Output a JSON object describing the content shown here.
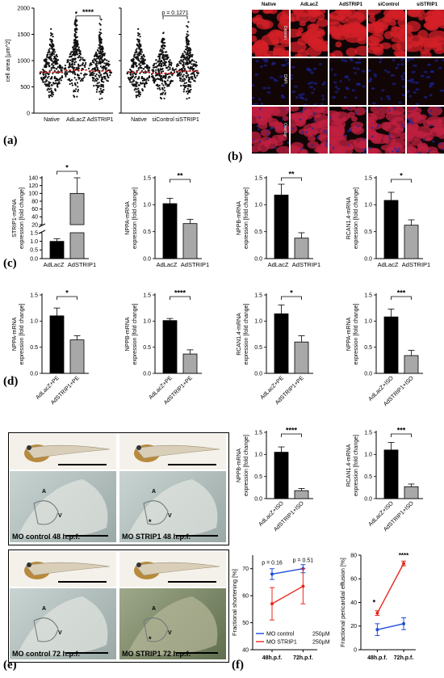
{
  "panel_labels": {
    "a": "(a)",
    "b": "(b)",
    "c": "(c)",
    "d": "(d)",
    "e": "(e)",
    "f": "(f)"
  },
  "microscopy": {
    "columns": [
      "Native",
      "AdLacZ",
      "AdSTRIP1",
      "siControl",
      "siSTRIP1"
    ],
    "rows": [
      "Desmin",
      "DAPI",
      "Overlay"
    ],
    "colors": {
      "desmin": "#d42028",
      "dapi": "#1a2ab0",
      "overlay": "#c02040",
      "background": "#120506"
    }
  },
  "zebrafish": {
    "captions": [
      "MO control   48 h.p.f.",
      "MO STRIP1   48 h.p.f.",
      "MO control   72 h.p.f.",
      "MO STRIP1   72 h.p.f."
    ],
    "markers": {
      "atrium": "A",
      "ventricle": "V",
      "effusion": "*"
    }
  },
  "chart_data": [
    {
      "id": "a1",
      "type": "scatter",
      "ylabel": "cell area [µm^2]",
      "ylim": [
        0,
        2000
      ],
      "yticks": [
        0,
        500,
        1000,
        1500,
        2000
      ],
      "categories": [
        "Native",
        "AdLacZ",
        "AdSTRIP1"
      ],
      "centers": [
        780,
        820,
        800
      ],
      "spreads": [
        [
          220,
          1800
        ],
        [
          250,
          2200
        ],
        [
          230,
          1900
        ]
      ],
      "significance": [
        {
          "from": 1,
          "to": 2,
          "label": "****"
        }
      ]
    },
    {
      "id": "a2",
      "type": "scatter",
      "ylabel": "",
      "ylim": [
        0,
        2000
      ],
      "categories": [
        "Native",
        "siControl",
        "siSTRIP1"
      ],
      "centers": [
        780,
        760,
        800
      ],
      "spreads": [
        [
          220,
          1800
        ],
        [
          230,
          1750
        ],
        [
          240,
          1850
        ]
      ],
      "significance": [
        {
          "from": 1,
          "to": 2,
          "label": "p = 0.1271"
        }
      ]
    },
    {
      "id": "c1",
      "type": "bar",
      "ylabel": "STRIP1-mRNA expression [fold change]",
      "categories": [
        "AdLacZ",
        "AdSTRIP1"
      ],
      "values": [
        1.0,
        100
      ],
      "errors": [
        0.15,
        40
      ],
      "broken_axis": {
        "lower": [
          0,
          1.5
        ],
        "upper": [
          20,
          140
        ]
      },
      "yticks_lower": [
        0.0,
        0.5,
        1.0,
        1.5
      ],
      "yticks_upper": [
        20,
        40,
        60,
        80,
        100,
        120,
        140
      ],
      "significance": [
        {
          "from": 0,
          "to": 1,
          "label": "*"
        }
      ]
    },
    {
      "id": "c2",
      "type": "bar",
      "ylabel": "NPPA-mRNA expression [fold change]",
      "categories": [
        "AdLacZ",
        "AdSTRIP1"
      ],
      "values": [
        1.02,
        0.65
      ],
      "errors": [
        0.1,
        0.08
      ],
      "ylim": [
        0,
        1.5
      ],
      "yticks": [
        0.0,
        0.5,
        1.0,
        1.5
      ],
      "significance": [
        {
          "from": 0,
          "to": 1,
          "label": "**"
        }
      ]
    },
    {
      "id": "c3",
      "type": "bar",
      "ylabel": "NPPB-mRNA expression [fold change]",
      "categories": [
        "AdLacZ",
        "AdSTRIP1"
      ],
      "values": [
        1.18,
        0.38
      ],
      "errors": [
        0.2,
        0.1
      ],
      "ylim": [
        0,
        1.5
      ],
      "yticks": [
        0.0,
        0.5,
        1.0,
        1.5
      ],
      "significance": [
        {
          "from": 0,
          "to": 1,
          "label": "**"
        }
      ]
    },
    {
      "id": "c4",
      "type": "bar",
      "ylabel": "RCAN1.4-mRNA expression [fold change]",
      "categories": [
        "AdLacZ",
        "AdSTRIP1"
      ],
      "values": [
        1.08,
        0.62
      ],
      "errors": [
        0.15,
        0.1
      ],
      "ylim": [
        0,
        1.5
      ],
      "yticks": [
        0.0,
        0.5,
        1.0,
        1.5
      ],
      "significance": [
        {
          "from": 0,
          "to": 1,
          "label": "*"
        }
      ]
    },
    {
      "id": "d1",
      "type": "bar",
      "ylabel": "NPPA-mRNA expression [fold change]",
      "categories": [
        "AdLacZ+PE",
        "AdSTRIP1+PE"
      ],
      "values": [
        1.1,
        0.64
      ],
      "errors": [
        0.15,
        0.08
      ],
      "ylim": [
        0,
        1.5
      ],
      "yticks": [
        0.0,
        0.5,
        1.0,
        1.5
      ],
      "significance": [
        {
          "from": 0,
          "to": 1,
          "label": "*"
        }
      ]
    },
    {
      "id": "d2",
      "type": "bar",
      "ylabel": "NPPB-mRNA expression [fold change]",
      "categories": [
        "AdLacZ+PE",
        "AdSTRIP1+PE"
      ],
      "values": [
        1.01,
        0.37
      ],
      "errors": [
        0.04,
        0.08
      ],
      "ylim": [
        0,
        1.5
      ],
      "yticks": [
        0.0,
        0.5,
        1.0,
        1.5
      ],
      "significance": [
        {
          "from": 0,
          "to": 1,
          "label": "****"
        }
      ]
    },
    {
      "id": "d3",
      "type": "bar",
      "ylabel": "RCAN1.4-mRNA expression [fold change]",
      "categories": [
        "AdLacZ+PE",
        "AdSTRIP1+PE"
      ],
      "values": [
        1.14,
        0.6
      ],
      "errors": [
        0.17,
        0.12
      ],
      "ylim": [
        0,
        1.5
      ],
      "yticks": [
        0.0,
        0.5,
        1.0,
        1.5
      ],
      "significance": [
        {
          "from": 0,
          "to": 1,
          "label": "*"
        }
      ]
    },
    {
      "id": "d4",
      "type": "bar",
      "ylabel": "NPPA-mRNA expression [fold change]",
      "categories": [
        "AdLacZ+ISO",
        "AdSTRIP1+ISO"
      ],
      "values": [
        1.08,
        0.34
      ],
      "errors": [
        0.15,
        0.1
      ],
      "ylim": [
        0,
        1.5
      ],
      "yticks": [
        0.0,
        0.5,
        1.0,
        1.5
      ],
      "significance": [
        {
          "from": 0,
          "to": 1,
          "label": "***"
        }
      ]
    },
    {
      "id": "d5",
      "type": "bar",
      "ylabel": "NPPB-mRNA expression [fold change]",
      "categories": [
        "AdLacZ+ISO",
        "AdSTRIP1+ISO"
      ],
      "values": [
        1.05,
        0.18
      ],
      "errors": [
        0.12,
        0.05
      ],
      "ylim": [
        0,
        1.5
      ],
      "yticks": [
        0.0,
        0.5,
        1.0,
        1.5
      ],
      "significance": [
        {
          "from": 0,
          "to": 1,
          "label": "****"
        }
      ]
    },
    {
      "id": "d6",
      "type": "bar",
      "ylabel": "RCAN1.4-mRNA expression [fold change]",
      "categories": [
        "AdLacZ+ISO",
        "AdSTRIP1+ISO"
      ],
      "values": [
        1.1,
        0.27
      ],
      "errors": [
        0.17,
        0.06
      ],
      "ylim": [
        0,
        1.5
      ],
      "yticks": [
        0.0,
        0.5,
        1.0,
        1.5
      ],
      "significance": [
        {
          "from": 0,
          "to": 1,
          "label": "***"
        }
      ]
    },
    {
      "id": "f1",
      "type": "line",
      "ylabel": "Fractional shortening [%]",
      "ylim": [
        40,
        75
      ],
      "yticks": [
        40,
        50,
        60,
        70
      ],
      "x": [
        "48h.p.f.",
        "72h.p.f."
      ],
      "series": [
        {
          "name": "MO control",
          "values": [
            68,
            70
          ],
          "errors": [
            2,
            1.5
          ],
          "color": "#1f4fd8"
        },
        {
          "name": "MO STRIP1",
          "values": [
            57,
            63.5
          ],
          "errors": [
            6,
            6.5
          ],
          "color": "#e8281e"
        }
      ],
      "legend_conc": [
        "250µM",
        "250µM"
      ],
      "annotations": [
        "p = 0.16",
        "p = 0.51"
      ],
      "legend": "bottom-left"
    },
    {
      "id": "f2",
      "type": "line",
      "ylabel": "Fractional pericardial effusion [%]",
      "ylim": [
        0,
        80
      ],
      "yticks": [
        0,
        20,
        40,
        60,
        80
      ],
      "x": [
        "48h.p.f.",
        "72h.p.f."
      ],
      "series": [
        {
          "name": "MO control",
          "values": [
            17,
            22
          ],
          "errors": [
            5,
            5
          ],
          "color": "#1f4fd8"
        },
        {
          "name": "MO STRIP1",
          "values": [
            31,
            73
          ],
          "errors": [
            2,
            2
          ],
          "color": "#e8281e"
        }
      ],
      "annotations": [
        "*",
        "****"
      ]
    }
  ]
}
